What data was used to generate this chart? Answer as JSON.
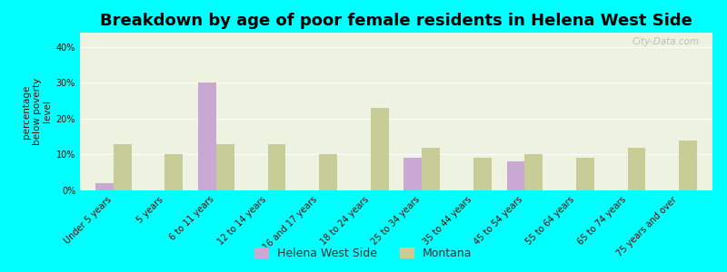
{
  "title": "Breakdown by age of poor female residents in Helena West Side",
  "categories": [
    "Under 5 years",
    "5 years",
    "6 to 11 years",
    "12 to 14 years",
    "16 and 17 years",
    "18 to 24 years",
    "25 to 34 years",
    "35 to 44 years",
    "45 to 54 years",
    "55 to 64 years",
    "65 to 74 years",
    "75 years and over"
  ],
  "helena_values": [
    2,
    0,
    30,
    0,
    0,
    0,
    9,
    0,
    8,
    0,
    0,
    0
  ],
  "montana_values": [
    13,
    10,
    13,
    13,
    10,
    23,
    12,
    9,
    10,
    9,
    12,
    14
  ],
  "helena_color": "#c9a8d4",
  "montana_color": "#c8cc96",
  "ylabel": "percentage\nbelow poverty\nlevel",
  "ylim": [
    0,
    44
  ],
  "yticks": [
    0,
    10,
    20,
    30,
    40
  ],
  "ytick_labels": [
    "0%",
    "10%",
    "20%",
    "30%",
    "40%"
  ],
  "background_color": "#00ffff",
  "plot_bg_color": "#eef2e0",
  "watermark": "City-Data.com",
  "bar_width": 0.35,
  "title_fontsize": 13,
  "axis_label_fontsize": 7.5,
  "tick_fontsize": 7.0,
  "legend_fontsize": 9
}
